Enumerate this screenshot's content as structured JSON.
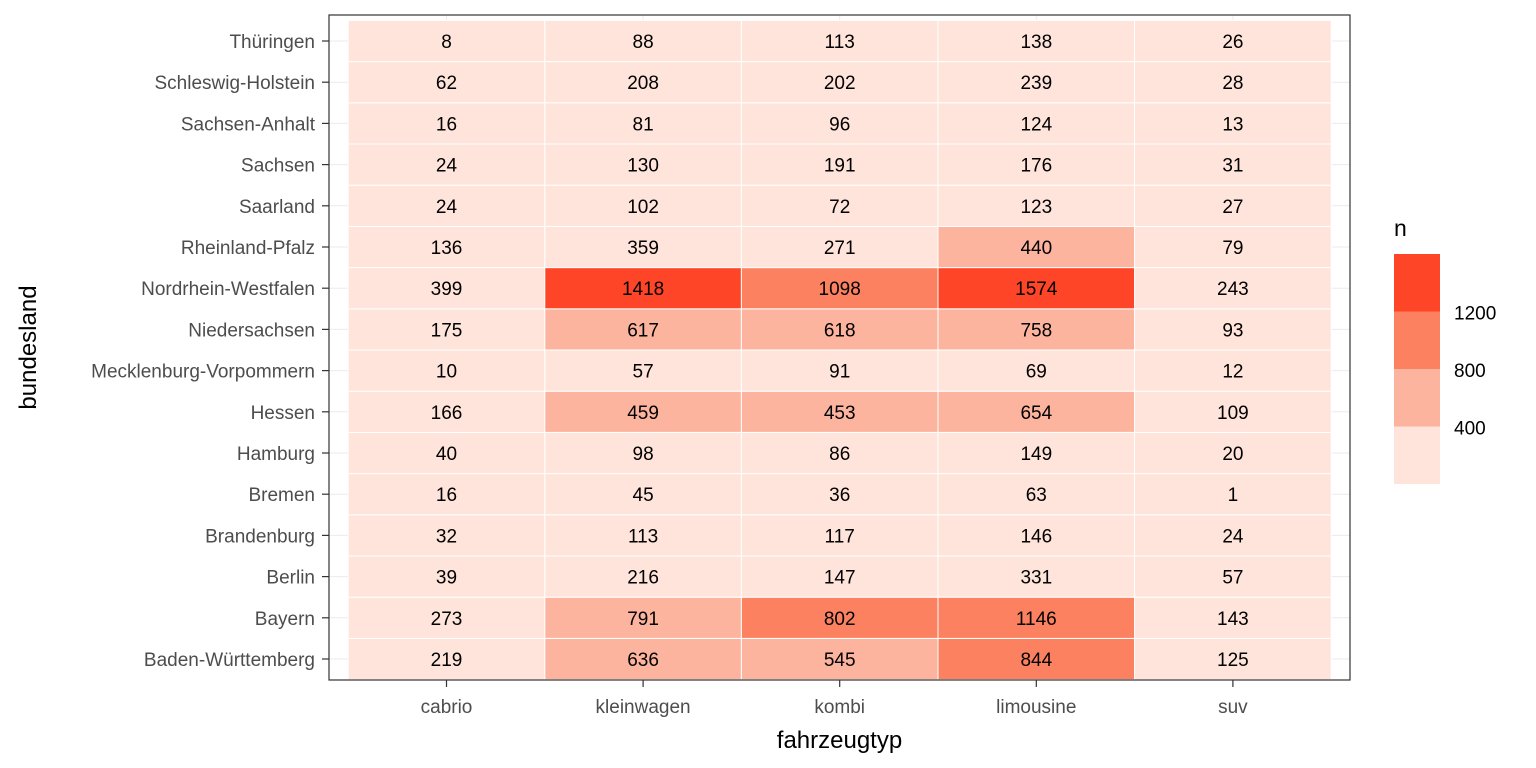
{
  "chart_data": {
    "type": "heatmap",
    "title": "",
    "xlabel": "fahrzeugtyp",
    "ylabel": "bundesland",
    "x_categories": [
      "cabrio",
      "kleinwagen",
      "kombi",
      "limousine",
      "suv"
    ],
    "y_categories": [
      "Baden-Württemberg",
      "Bayern",
      "Berlin",
      "Brandenburg",
      "Bremen",
      "Hamburg",
      "Hessen",
      "Mecklenburg-Vorpommern",
      "Niedersachsen",
      "Nordrhein-Westfalen",
      "Rheinland-Pfalz",
      "Saarland",
      "Sachsen",
      "Sachsen-Anhalt",
      "Schleswig-Holstein",
      "Thüringen"
    ],
    "values": [
      [
        219,
        636,
        545,
        844,
        125
      ],
      [
        273,
        791,
        802,
        1146,
        143
      ],
      [
        39,
        216,
        147,
        331,
        57
      ],
      [
        32,
        113,
        117,
        146,
        24
      ],
      [
        16,
        45,
        36,
        63,
        1
      ],
      [
        40,
        98,
        86,
        149,
        20
      ],
      [
        166,
        459,
        453,
        654,
        109
      ],
      [
        10,
        57,
        91,
        69,
        12
      ],
      [
        175,
        617,
        618,
        758,
        93
      ],
      [
        399,
        1418,
        1098,
        1574,
        243
      ],
      [
        136,
        359,
        271,
        440,
        79
      ],
      [
        24,
        102,
        72,
        123,
        27
      ],
      [
        24,
        130,
        191,
        176,
        31
      ],
      [
        16,
        81,
        96,
        124,
        13
      ],
      [
        62,
        208,
        202,
        239,
        28
      ],
      [
        8,
        88,
        113,
        138,
        26
      ]
    ],
    "legend": {
      "title": "n",
      "position": "right",
      "breaks": [
        400,
        800,
        1200
      ],
      "bins": [
        {
          "min": 0,
          "max": 400,
          "color": "#fee4da"
        },
        {
          "min": 400,
          "max": 800,
          "color": "#fcb49f"
        },
        {
          "min": 800,
          "max": 1200,
          "color": "#fc8161"
        },
        {
          "min": 1200,
          "max": 1600,
          "color": "#fe4528"
        }
      ]
    },
    "grid": true
  }
}
